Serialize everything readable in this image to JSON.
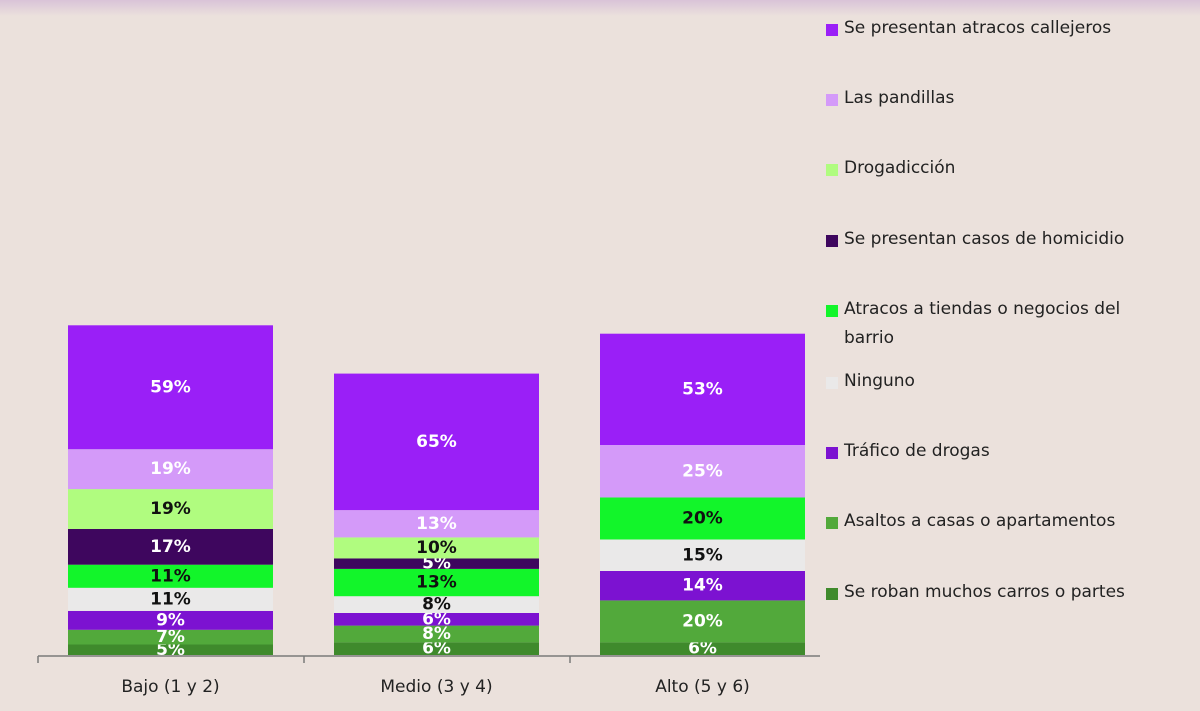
{
  "chart_data": {
    "type": "bar",
    "stacked": true,
    "categories": [
      "Bajo (1 y 2)",
      "Medio (3 y 4)",
      "Alto (5 y 6)"
    ],
    "series": [
      {
        "name": "Se roban muchos carros o partes",
        "color": "#3f8a2c",
        "text_color": "#ffffff",
        "values": [
          5,
          6,
          6
        ]
      },
      {
        "name": "Asaltos a casas o apartamentos",
        "color": "#52a93b",
        "text_color": "#ffffff",
        "values": [
          7,
          8,
          20
        ]
      },
      {
        "name": "Tráfico de drogas",
        "color": "#7c12d1",
        "text_color": "#ffffff",
        "values": [
          9,
          6,
          14
        ]
      },
      {
        "name": "Ninguno",
        "color": "#eae9e9",
        "text_color": "#111111",
        "values": [
          11,
          8,
          15
        ]
      },
      {
        "name": "Atracos a tiendas o negocios del barrio",
        "color": "#12f52a",
        "text_color": "#111111",
        "values": [
          11,
          13,
          20
        ]
      },
      {
        "name": "Se presentan casos de homicidio",
        "color": "#3e065e",
        "text_color": "#ffffff",
        "values": [
          17,
          5,
          null
        ]
      },
      {
        "name": "Drogadicción",
        "color": "#b0fc7f",
        "text_color": "#111111",
        "values": [
          19,
          10,
          null
        ]
      },
      {
        "name": "Las pandillas",
        "color": "#d49af9",
        "text_color": "#ffffff",
        "values": [
          19,
          13,
          25
        ]
      },
      {
        "name": "Se presentan atracos callejeros",
        "color": "#9a1ff7",
        "text_color": "#ffffff",
        "values": [
          59,
          65,
          53
        ]
      }
    ],
    "legend": {
      "position": "right",
      "order": [
        "Se presentan atracos callejeros",
        "Las pandillas",
        "Drogadicción",
        "Se presentan casos de homicidio",
        "Atracos a tiendas o negocios del barrio",
        "Ninguno",
        "Tráfico de drogas",
        "Asaltos a casas o apartamentos",
        "Se roban muchos carros o partes"
      ]
    },
    "grid": false,
    "value_suffix": "%"
  }
}
